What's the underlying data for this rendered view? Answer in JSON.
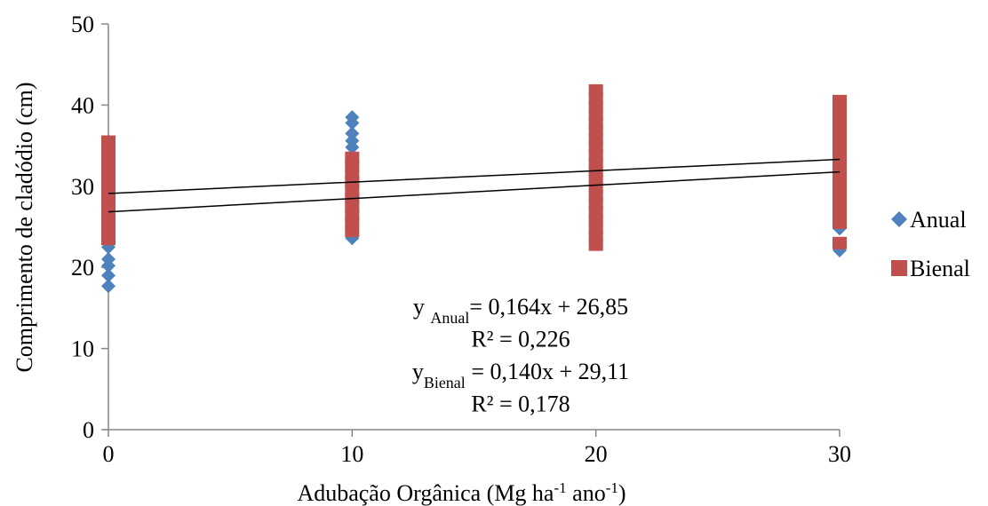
{
  "chart_data": {
    "type": "scatter",
    "x_label": [
      {
        "text": "Adubação Orgânica (Mg ha"
      },
      {
        "text": "-1",
        "sup": true
      },
      {
        "text": " ano"
      },
      {
        "text": "-1",
        "sup": true
      },
      {
        "text": ")"
      }
    ],
    "y_label": "Comprimento de cladódio (cm)",
    "xlim": [
      0,
      30
    ],
    "xticks": [
      0,
      10,
      20,
      30
    ],
    "ylim": [
      0,
      50
    ],
    "yticks": [
      0,
      10,
      20,
      30,
      40,
      50
    ],
    "legend": "right",
    "series": [
      {
        "name": "Anual",
        "color": "#4f81bd",
        "marker": "diamond",
        "x": [
          0,
          0,
          0,
          0,
          0,
          0,
          0,
          0,
          0,
          0,
          0,
          0,
          10,
          10,
          10,
          10,
          10,
          10,
          10,
          10,
          10,
          10,
          10,
          20,
          20,
          20,
          20,
          20,
          20,
          20,
          20,
          20,
          20,
          30,
          30,
          30,
          30,
          30,
          30,
          30,
          30,
          30
        ],
        "values": [
          17.7,
          19.0,
          20.2,
          21.0,
          22.5,
          24,
          26,
          28,
          30,
          32,
          34,
          35.5,
          23.6,
          25,
          27,
          29,
          31,
          33,
          34.8,
          35.6,
          36.5,
          37.8,
          38.5,
          23,
          25,
          27,
          29,
          31,
          33,
          35,
          37,
          39,
          41,
          22.1,
          24.8,
          27,
          29,
          31,
          33,
          35,
          37,
          39
        ],
        "trend": {
          "slope": 0.164,
          "intercept": 26.85
        }
      },
      {
        "name": "Bienal",
        "color": "#c0504d",
        "marker": "square",
        "x": [
          0,
          0,
          0,
          0,
          0,
          0,
          0,
          0,
          0,
          0,
          0,
          0,
          0,
          10,
          10,
          10,
          10,
          10,
          10,
          10,
          10,
          10,
          10,
          20,
          20,
          20,
          20,
          20,
          20,
          20,
          20,
          20,
          20,
          20,
          20,
          20,
          20,
          20,
          20,
          20,
          20,
          20,
          20,
          30,
          30,
          30,
          30,
          30,
          30,
          30,
          30,
          30,
          30,
          30,
          30,
          30,
          30,
          30,
          30,
          30
        ],
        "values": [
          23.5,
          24.5,
          25.5,
          26.5,
          27.5,
          28.5,
          29.5,
          30.5,
          31.5,
          32.5,
          33.5,
          34.5,
          35.5,
          24.5,
          25.5,
          26.5,
          27.5,
          28.5,
          29.5,
          30.5,
          31.5,
          32.5,
          33.5,
          22.8,
          23.8,
          24.8,
          25.8,
          26.8,
          27.8,
          28.8,
          29.8,
          30.8,
          31.8,
          32.8,
          33.8,
          34.8,
          35.8,
          36.8,
          37.8,
          38.8,
          39.8,
          40.8,
          41.8,
          23.0,
          25.5,
          26.5,
          27.5,
          28.5,
          29.5,
          30.5,
          31.5,
          32.5,
          33.5,
          34.5,
          35.5,
          36.5,
          37.5,
          38.5,
          39.5,
          40.5
        ],
        "trend": {
          "slope": 0.14,
          "intercept": 29.11
        }
      }
    ],
    "equations": [
      [
        {
          "text": "y "
        },
        {
          "text": "Anual",
          "sub": true
        },
        {
          "text": "= 0,164x + 26,85"
        }
      ],
      [
        {
          "text": "R² = 0,226"
        }
      ],
      [
        {
          "text": "y"
        },
        {
          "text": "Bienal",
          "sub": true
        },
        {
          "text": " = 0,140x + 29,11"
        }
      ],
      [
        {
          "text": "R² = 0,178"
        }
      ]
    ]
  }
}
